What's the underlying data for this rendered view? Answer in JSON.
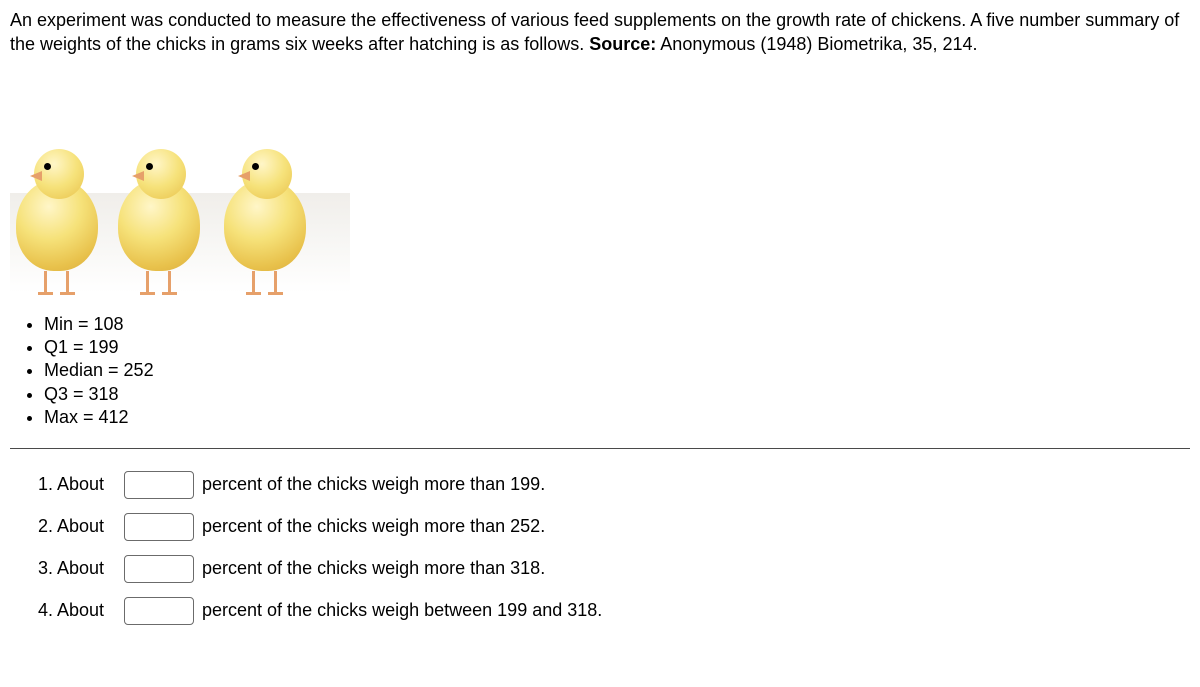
{
  "intro": {
    "text": "An experiment was conducted to measure the effectiveness of various feed supplements on the growth rate of chickens. A five number summary of the weights of the chicks in grams six weeks after hatching is as follows. ",
    "source_label": "Source:",
    "source_text": " Anonymous (1948) Biometrika, 35, 214."
  },
  "summary": [
    "Min = 108",
    "Q1 = 199",
    "Median = 252",
    "Q3 = 318",
    "Max = 412"
  ],
  "questions": [
    {
      "num": "1. About",
      "tail": "percent of the chicks weigh more than 199.",
      "value": ""
    },
    {
      "num": "2. About",
      "tail": "percent of the chicks weigh more than 252.",
      "value": ""
    },
    {
      "num": "3. About",
      "tail": "percent of the chicks weigh more than 318.",
      "value": ""
    },
    {
      "num": "4. About",
      "tail": "percent of the chicks weigh between 199 and 318.",
      "value": ""
    }
  ]
}
